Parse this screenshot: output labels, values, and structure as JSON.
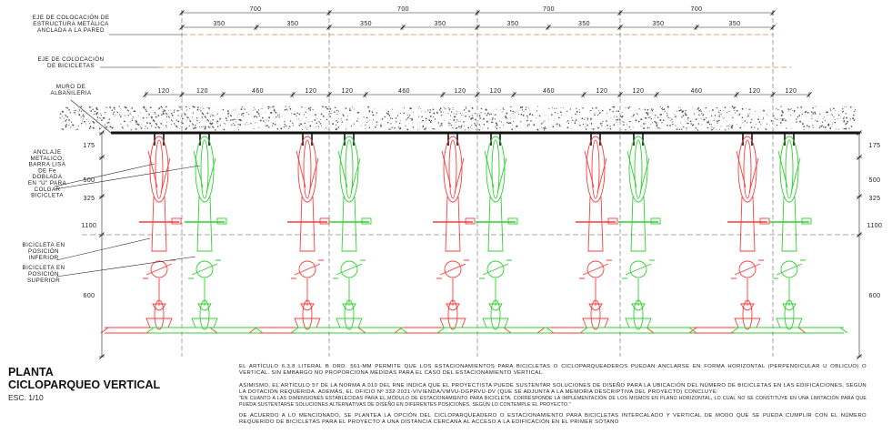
{
  "labels": {
    "eje_estructura": [
      "EJE DE COLOCACIÓN DE",
      "ESTRUCTURA METÁLICA",
      "ANCLADA A LA PARED"
    ],
    "eje_bicicletas": [
      "EJE DE COLOCACIÓN",
      "DE BICICLETAS"
    ],
    "muro": [
      "MURO DE",
      "ALBAÑILERIA"
    ],
    "anclaje": [
      "ANCLAJE",
      "METALICO,",
      "BARRA LISA",
      "DE Fe",
      "DOBLADA",
      "EN \"U\" PARA",
      "COLGAR",
      "BICICLETA"
    ],
    "bici_inferior": [
      "BICICLETA EN",
      "POSICIÓN",
      "INFERIOR"
    ],
    "bici_superior": [
      "BICICLETA EN",
      "POSICIÓN",
      "SUPERIOR"
    ]
  },
  "dimensions": {
    "top_700": [
      "700",
      "700",
      "700",
      "700"
    ],
    "top_350": [
      "350",
      "350",
      "350",
      "350",
      "350",
      "350",
      "350",
      "350"
    ],
    "spacing": [
      "120",
      "120",
      "460",
      "120",
      "120",
      "460",
      "120",
      "120",
      "460",
      "120",
      "120",
      "460",
      "120",
      "120"
    ],
    "left_side": [
      "175",
      "500",
      "325",
      "1100",
      "600"
    ],
    "right_side": [
      "175",
      "500",
      "325",
      "1100",
      "600"
    ]
  },
  "title": {
    "line1": "PLANTA",
    "line2": "CICLOPARQUEO VERTICAL",
    "scale": "ESC. 1/10"
  },
  "notes": {
    "p1": "EL ARTÍCULO 6.3.8 LITERAL B ORD. 561-MM PERMITE QUE LOS ESTACIONAMIENTOS PARA BICICLETAS O CICLOPARQUEADEROS PUEDAN ANCLARSE EN FORMA HORIZONTAL (PERPENDICULAR U OBLICUO) O VERTICAL. SIN EMBARGO NO PROPORCIONA MEDIDAS PARA EL CASO DEL ESTACIONAMIENTO VERTICAL.",
    "p2a": "ASIMISMO, EL ARTÍCULO 57 DE LA NORMA A.010 DEL RNE INDICA QUE EL PROYECTISTA PUEDE SUSTENTAR SOLUCIONES DE DISEÑO PARA LA UBICACIÓN DEL NÚMERO DE BICICLETAS EN LAS EDIFICACIONES, SEGÚN LA DOTACIÓN REQUERIDA. ADEMÁS, EL OFICIO Nº 332-2021-VIVIENDA/VMVU-DGPRVU-DV (QUE SE ADJUNTA A LA MEMORIA DESCRIPTIVA DEL PROYECTO) CONCLUYE:",
    "p2b": "\"EN CUANTO A LAS DIMENSIONES ESTABLECIDAS PARA EL MÓDULO DE ESTACIONAMIENTO PARA BICICLETA, CORRESPONDE LA IMPLEMENTACIÓN DE LOS MISMOS EN PLANO HORIZONTAL, LO CUAL NO SE CONSTITUYE EN UNA LIMITACIÓN PARA QUE PUEDA SUSTENTARSE SOLUCIONES ALTERNATIVAS DE DISEÑO EN DIFERENTES POSICIONES, SEGÚN LO CONTEMPLE EL PROYECTO.\"",
    "p3": "DE ACUERDO A LO MENCIONADO, SE PLANTEA LA OPCIÓN DEL CICLOPARQUEADERO O ESTACIONAMIENTO PARA BICICLETAS INTERCALADO Y VERTICAL DE MODO QUE SE PUEDA CUMPLIR CON EL NÚMERO REQUERIDO DE BICICLETAS PARA EL PROYECTO A UNA DISTANCIA CERCANA AL ACCESO A LA EDIFICACIÓN EN EL PRIMER SÓTANO"
  },
  "colors": {
    "red_bike": "#ff3b3b",
    "green_bike": "#2fd02f",
    "axis_orange": "#d9894a",
    "line_dark": "#1a1a1a"
  }
}
